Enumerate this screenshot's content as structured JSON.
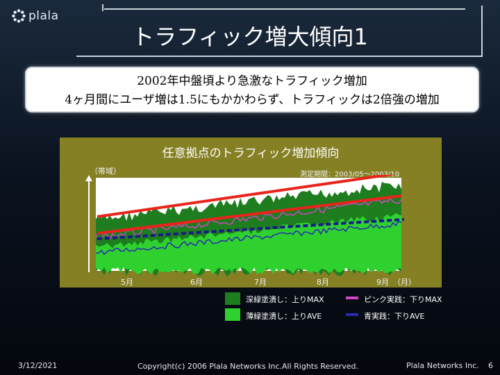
{
  "header": {
    "logo_text": "plala",
    "title": "トラフィック増大傾向1"
  },
  "subtitle": {
    "line1": "2002年中盤頃より急激なトラフィック増加",
    "line2": "4ヶ月間にユーザ増は1.5にもかかわらず、トラフィックは2倍強の増加"
  },
  "chart_data": {
    "type": "area",
    "title": "任意拠点のトラフィック増加傾向",
    "ylabel": "（帯域）",
    "period": "測定期間：2003/05～2003/10",
    "x_ticks": [
      "5月",
      "6月",
      "7月",
      "8月",
      "9月"
    ],
    "x_unit": "（月）",
    "grid": false,
    "series": [
      {
        "name": "深緑塗潰し：上りMAX",
        "color": "#1e7d1e",
        "kind": "fill"
      },
      {
        "name": "薄緑塗潰し：上りAVE",
        "color": "#2ed12e",
        "kind": "fill"
      },
      {
        "name": "ピンク実践：下りMAX",
        "color": "#d247c4",
        "kind": "line"
      },
      {
        "name": "青実践：下りAVE",
        "color": "#2a2ab0",
        "kind": "line"
      }
    ]
  },
  "footer": {
    "date": "3/12/2021",
    "copyright": "Copyright(c) 2006 Plala Networks Inc.All Rights Reserved.",
    "company": "Plala Networks Inc.",
    "page": "6"
  }
}
